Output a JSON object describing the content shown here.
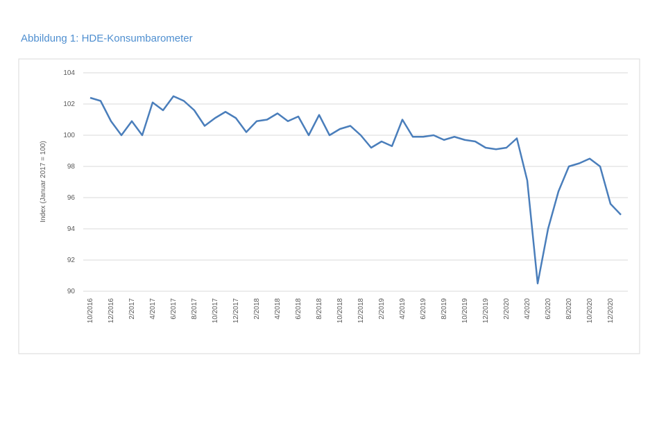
{
  "chart_data": {
    "type": "line",
    "title": "Abbildung 1: HDE-Konsumbarometer",
    "y_label": "Index (Januar 2017 = 100)",
    "categories": [
      "10/2016",
      null,
      "12/2016",
      null,
      "2/2017",
      null,
      "4/2017",
      null,
      "6/2017",
      null,
      "8/2017",
      null,
      "10/2017",
      null,
      "12/2017",
      null,
      "2/2018",
      null,
      "4/2018",
      null,
      "6/2018",
      null,
      "8/2018",
      null,
      "10/2018",
      null,
      "12/2018",
      null,
      "2/2019",
      null,
      "4/2019",
      null,
      "6/2019",
      null,
      "8/2019",
      null,
      "10/2019",
      null,
      "12/2019",
      null,
      "2/2020",
      null,
      "4/2020",
      null,
      "6/2020",
      null,
      "8/2020",
      null,
      "10/2020",
      null,
      "12/2020",
      null
    ],
    "values": [
      102.4,
      102.2,
      100.9,
      100.0,
      100.9,
      100.0,
      102.1,
      101.6,
      102.5,
      102.2,
      101.6,
      100.6,
      101.1,
      101.5,
      101.1,
      100.2,
      100.9,
      101.0,
      101.4,
      100.9,
      101.2,
      100.0,
      101.3,
      100.0,
      100.4,
      100.6,
      100.0,
      99.2,
      99.6,
      99.3,
      101.0,
      99.9,
      99.9,
      100.0,
      99.7,
      99.9,
      99.7,
      99.6,
      99.2,
      99.1,
      99.2,
      99.8,
      97.1,
      90.5,
      94.0,
      96.4,
      98.0,
      98.2,
      98.5,
      98.0,
      95.6,
      94.9
    ],
    "color": "#4a7ebb",
    "ylim": [
      90,
      104
    ],
    "yticks": [
      90,
      92,
      94,
      96,
      98,
      100,
      102,
      104
    ],
    "grid": true
  }
}
